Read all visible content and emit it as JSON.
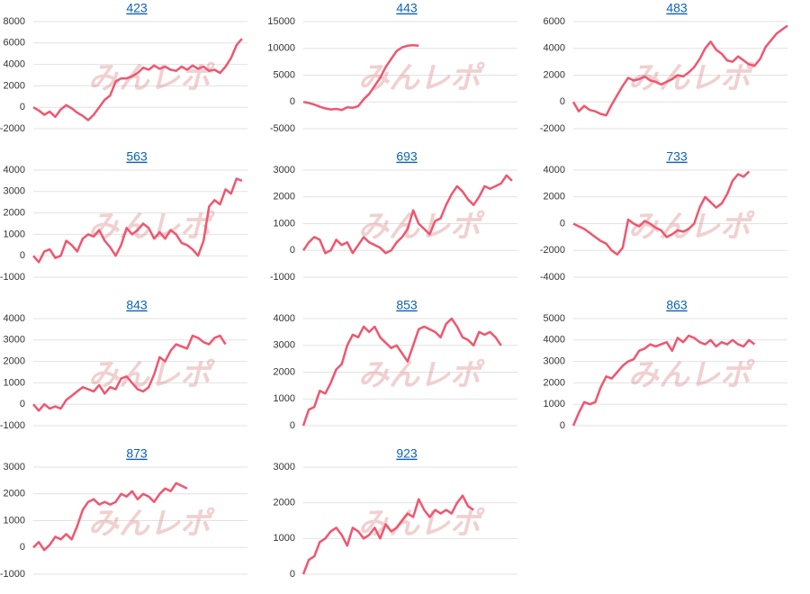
{
  "watermark": "みんレポ",
  "chart_data": [
    {
      "type": "line",
      "title": "423",
      "color": "#f0566f",
      "grid": true,
      "ylim": [
        -2000,
        8000
      ],
      "yticks": [
        -2000,
        0,
        2000,
        4000,
        6000,
        8000
      ],
      "values": [
        0,
        -300,
        -700,
        -400,
        -900,
        -200,
        200,
        -100,
        -500,
        -800,
        -1200,
        -700,
        0,
        700,
        1100,
        2400,
        2700,
        2700,
        2900,
        3200,
        3700,
        3500,
        3900,
        3600,
        3800,
        3500,
        3400,
        3800,
        3500,
        3900,
        3600,
        3800,
        3400,
        3500,
        3200,
        3800,
        4600,
        5800,
        6400
      ]
    },
    {
      "type": "line",
      "title": "443",
      "color": "#f0566f",
      "grid": true,
      "ylim": [
        -5000,
        15000
      ],
      "yticks": [
        -5000,
        0,
        5000,
        10000,
        15000
      ],
      "values": [
        0,
        -200,
        -500,
        -900,
        -1200,
        -1400,
        -1300,
        -1500,
        -1000,
        -1100,
        -800,
        500,
        1500,
        3000,
        4500,
        6500,
        8000,
        9500,
        10200,
        10500,
        10600,
        10500
      ]
    },
    {
      "type": "line",
      "title": "483",
      "color": "#f0566f",
      "grid": true,
      "ylim": [
        -2000,
        6000
      ],
      "yticks": [
        -2000,
        0,
        2000,
        4000,
        6000
      ],
      "values": [
        0,
        -700,
        -300,
        -600,
        -700,
        -900,
        -1000,
        -200,
        500,
        1200,
        1800,
        1600,
        1700,
        1900,
        1600,
        1500,
        1300,
        1500,
        1700,
        2000,
        1900,
        2200,
        2600,
        3200,
        4000,
        4500,
        3900,
        3600,
        3100,
        3000,
        3400,
        3100,
        2800,
        2700,
        3200,
        4100,
        4600,
        5100,
        5400,
        5700
      ]
    },
    {
      "type": "line",
      "title": "563",
      "color": "#f0566f",
      "grid": true,
      "ylim": [
        -1000,
        4000
      ],
      "yticks": [
        -1000,
        0,
        1000,
        2000,
        3000,
        4000
      ],
      "values": [
        0,
        -300,
        200,
        300,
        -100,
        0,
        700,
        500,
        200,
        800,
        1000,
        900,
        1200,
        700,
        400,
        0,
        500,
        1300,
        1000,
        1200,
        1500,
        1300,
        800,
        1100,
        800,
        1200,
        1000,
        600,
        500,
        300,
        0,
        700,
        2300,
        2600,
        2400,
        3100,
        2900,
        3600,
        3500
      ]
    },
    {
      "type": "line",
      "title": "693",
      "color": "#f0566f",
      "grid": true,
      "ylim": [
        -1000,
        3000
      ],
      "yticks": [
        -1000,
        0,
        1000,
        2000,
        3000
      ],
      "values": [
        0,
        300,
        500,
        400,
        -100,
        0,
        400,
        200,
        300,
        -100,
        200,
        500,
        300,
        200,
        100,
        -100,
        0,
        300,
        500,
        800,
        1500,
        1000,
        800,
        600,
        1100,
        1200,
        1700,
        2100,
        2400,
        2200,
        1900,
        1700,
        2000,
        2400,
        2300,
        2400,
        2500,
        2800,
        2600
      ]
    },
    {
      "type": "line",
      "title": "733",
      "color": "#f0566f",
      "grid": true,
      "ylim": [
        -4000,
        4000
      ],
      "yticks": [
        -4000,
        -2000,
        0,
        2000,
        4000
      ],
      "values": [
        0,
        -200,
        -400,
        -700,
        -1000,
        -1300,
        -1500,
        -2000,
        -2300,
        -1800,
        300,
        0,
        -200,
        200,
        0,
        -300,
        -500,
        -1000,
        -800,
        -500,
        -600,
        -400,
        0,
        1200,
        2000,
        1600,
        1200,
        1500,
        2200,
        3200,
        3700,
        3500,
        3900
      ]
    },
    {
      "type": "line",
      "title": "843",
      "color": "#f0566f",
      "grid": true,
      "ylim": [
        -1000,
        4000
      ],
      "yticks": [
        -1000,
        0,
        1000,
        2000,
        3000,
        4000
      ],
      "values": [
        0,
        -300,
        0,
        -200,
        -100,
        -200,
        200,
        400,
        600,
        800,
        700,
        600,
        900,
        500,
        800,
        700,
        1200,
        1300,
        1000,
        700,
        600,
        800,
        1400,
        2200,
        2000,
        2500,
        2800,
        2700,
        2600,
        3200,
        3100,
        2900,
        2800,
        3100,
        3200,
        2800
      ]
    },
    {
      "type": "line",
      "title": "853",
      "color": "#f0566f",
      "grid": true,
      "ylim": [
        0,
        4000
      ],
      "yticks": [
        0,
        1000,
        2000,
        3000,
        4000
      ],
      "values": [
        0,
        600,
        700,
        1300,
        1200,
        1600,
        2100,
        2300,
        3000,
        3400,
        3300,
        3700,
        3500,
        3700,
        3300,
        3100,
        2900,
        3000,
        2700,
        2400,
        3000,
        3600,
        3700,
        3600,
        3500,
        3300,
        3800,
        4000,
        3700,
        3300,
        3200,
        3000,
        3500,
        3400,
        3500,
        3300,
        3000
      ]
    },
    {
      "type": "line",
      "title": "863",
      "color": "#f0566f",
      "grid": true,
      "ylim": [
        0,
        5000
      ],
      "yticks": [
        0,
        1000,
        2000,
        3000,
        4000,
        5000
      ],
      "values": [
        0,
        600,
        1100,
        1000,
        1100,
        1800,
        2300,
        2200,
        2500,
        2800,
        3000,
        3100,
        3500,
        3600,
        3800,
        3700,
        3800,
        3900,
        3500,
        4100,
        3900,
        4200,
        4100,
        3900,
        3800,
        4000,
        3700,
        3900,
        3800,
        4000,
        3800,
        3700,
        4000,
        3800
      ]
    },
    {
      "type": "line",
      "title": "873",
      "color": "#f0566f",
      "grid": true,
      "ylim": [
        -1000,
        3000
      ],
      "yticks": [
        -1000,
        0,
        1000,
        2000,
        3000
      ],
      "values": [
        0,
        200,
        -100,
        100,
        400,
        300,
        500,
        300,
        800,
        1400,
        1700,
        1800,
        1600,
        1700,
        1600,
        1700,
        2000,
        1900,
        2100,
        1800,
        2000,
        1900,
        1700,
        2000,
        2200,
        2100,
        2400,
        2300,
        2200
      ]
    },
    {
      "type": "line",
      "title": "923",
      "color": "#f0566f",
      "grid": true,
      "ylim": [
        0,
        3000
      ],
      "yticks": [
        0,
        1000,
        2000,
        3000
      ],
      "values": [
        0,
        400,
        500,
        900,
        1000,
        1200,
        1300,
        1100,
        800,
        1300,
        1200,
        1000,
        1100,
        1300,
        1000,
        1400,
        1200,
        1300,
        1500,
        1700,
        1600,
        2100,
        1800,
        1600,
        1800,
        1700,
        1800,
        1700,
        2000,
        2200,
        1900,
        1800
      ]
    }
  ]
}
